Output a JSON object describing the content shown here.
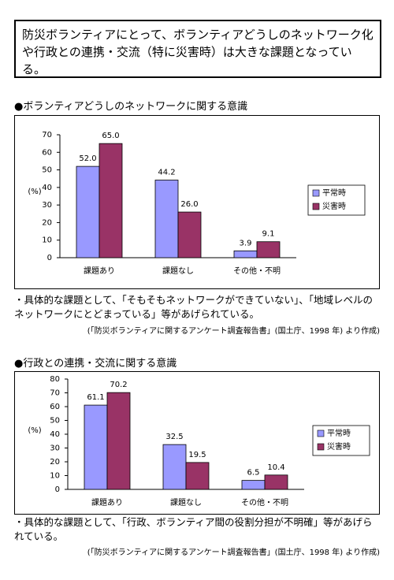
{
  "intro": "防災ボランティアにとって、ボランティアどうしのネットワーク化や行政との連携・交流（特に災害時）は大きな課題となっている。",
  "chart_data": [
    {
      "type": "bar",
      "title": "●ボランティアどうしのネットワークに関する意識",
      "y_label": "(%)",
      "categories": [
        "課題あり",
        "課題なし",
        "その他・不明"
      ],
      "series": [
        {
          "name": "平常時",
          "color": "#9999ff",
          "values": [
            52.0,
            44.2,
            3.9
          ],
          "value_labels": [
            "52.0",
            "44.2",
            "3.9"
          ]
        },
        {
          "name": "災害時",
          "color": "#993366",
          "values": [
            65.0,
            26.0,
            9.1
          ],
          "value_labels": [
            "65.0",
            "26.0",
            "9.1"
          ]
        }
      ],
      "ylim": [
        0,
        70
      ],
      "yticks": [
        0,
        10,
        20,
        30,
        40,
        50,
        60,
        70
      ],
      "legend": "right",
      "grid": false
    },
    {
      "type": "bar",
      "title": "●行政との連携・交流に関する意識",
      "y_label": "(%)",
      "categories": [
        "課題あり",
        "課題なし",
        "その他・不明"
      ],
      "series": [
        {
          "name": "平常時",
          "color": "#9999ff",
          "values": [
            61.1,
            32.5,
            6.5
          ],
          "value_labels": [
            "61.1",
            "32.5",
            "6.5"
          ]
        },
        {
          "name": "災害時",
          "color": "#993366",
          "values": [
            70.2,
            19.5,
            10.4
          ],
          "value_labels": [
            "70.2",
            "19.5",
            "10.4"
          ]
        }
      ],
      "ylim": [
        0,
        80
      ],
      "yticks": [
        0,
        10,
        20,
        30,
        40,
        50,
        60,
        70,
        80
      ],
      "legend": "right",
      "grid": false
    }
  ],
  "notes": [
    {
      "text": "・具体的な課題として、「そもそもネットワークができていない」、「地域レベルのネットワークにとどまっている」等があげられている。",
      "source": "(「防災ボランティアに関するアンケート調査報告書」(国土庁、1998 年) より作成)"
    },
    {
      "text": "・具体的な課題として、「行政、ボランティア間の役割分担が不明確」等があげられている。",
      "source": "(「防災ボランティアに関するアンケート調査報告書」(国土庁、1998 年) より作成)"
    }
  ]
}
